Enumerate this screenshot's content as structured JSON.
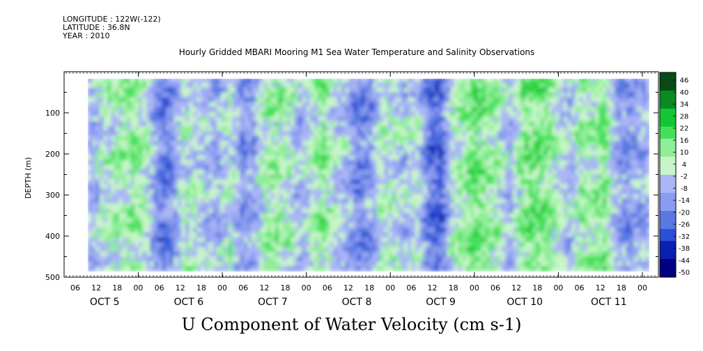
{
  "header": {
    "longitude": "LONGITUDE : 122W(-122)",
    "latitude": "LATITUDE : 36.8N",
    "year": "YEAR : 2010"
  },
  "title": "Hourly Gridded MBARI Mooring M1 Sea Water Temperature and Salinity Observations",
  "caption": "U Component of Water Velocity (cm s-1)",
  "chart_data": {
    "type": "heatmap",
    "title": "Hourly Gridded MBARI Mooring M1 Sea Water Temperature and Salinity Observations",
    "subtitle": "U Component of Water Velocity (cm s-1)",
    "xlabel": "",
    "ylabel": "DEPTH (m)",
    "y_reversed": true,
    "ylim": [
      0,
      500
    ],
    "y_ticks": [
      100,
      200,
      300,
      400,
      500
    ],
    "y_tick_labels": [
      "100",
      "200",
      "300",
      "400",
      "500"
    ],
    "x_hour_tick_labels": [
      "06",
      "12",
      "18",
      "00",
      "06",
      "12",
      "18",
      "00",
      "06",
      "12",
      "18",
      "00",
      "06",
      "12",
      "18",
      "00",
      "06",
      "12",
      "18",
      "00",
      "06",
      "12",
      "18",
      "00",
      "06",
      "12",
      "18",
      "00"
    ],
    "x_day_labels": [
      "OCT  5",
      "OCT  6",
      "OCT  7",
      "OCT  8",
      "OCT  9",
      "OCT 10",
      "OCT 11"
    ],
    "colorbar_labels": [
      "46",
      "40",
      "34",
      "28",
      "22",
      "16",
      "10",
      "4",
      "-2",
      "-8",
      "-14",
      "-20",
      "-26",
      "-32",
      "-38",
      "-44",
      "-50"
    ],
    "colorbar_range": [
      -50,
      52
    ],
    "data_depth_range": [
      15,
      485
    ],
    "column_mean_u": [
      -8,
      2,
      6,
      10,
      12,
      2,
      -18,
      -14,
      4,
      2,
      -4,
      -6,
      6,
      -14,
      -10,
      8,
      12,
      6,
      -4,
      4,
      14,
      2,
      -6,
      -16,
      -12,
      6,
      4,
      -2,
      2,
      -20,
      -24,
      4,
      12,
      18,
      14,
      6,
      -6,
      14,
      18,
      16,
      6,
      -4,
      12,
      8,
      16,
      -8,
      -12,
      -6
    ],
    "colormap": [
      "#000080",
      "#0b1fb0",
      "#2a50d6",
      "#5a78e0",
      "#8b9cf0",
      "#aab6f5",
      "#c7f5c9",
      "#8fee98",
      "#45e05a",
      "#13c634",
      "#0a8a22",
      "#084b17"
    ]
  }
}
